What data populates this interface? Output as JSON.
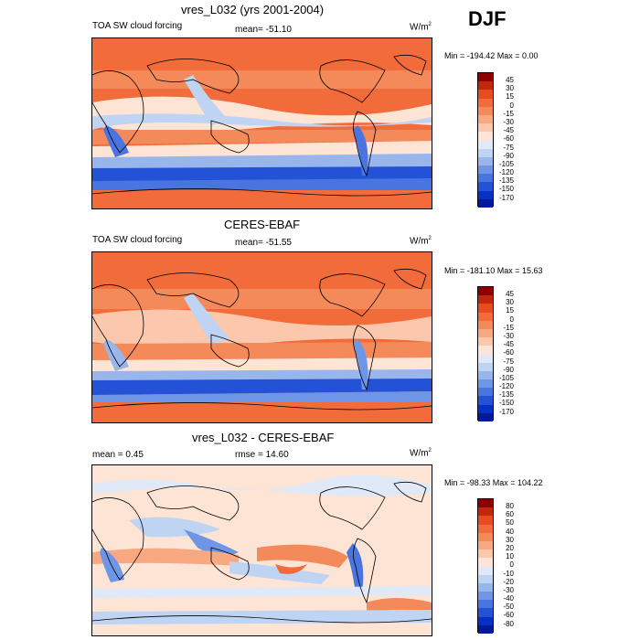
{
  "season": "DJF",
  "panels": [
    {
      "title": "vres_L032 (yrs 2001-2004)",
      "left_label": "TOA SW cloud forcing",
      "center_label": "mean= -51.10",
      "units": "W/m",
      "units_sup": "2",
      "minmax": "Min = -194.42 Max =   0.00",
      "colorbar_labels": [
        "45",
        "30",
        "15",
        "0",
        "-15",
        "-30",
        "-45",
        "-60",
        "-75",
        "-90",
        "-105",
        "-120",
        "-135",
        "-150",
        "-170"
      ]
    },
    {
      "title": "CERES-EBAF",
      "left_label": "TOA SW cloud forcing",
      "center_label": "mean= -51.55",
      "units": "W/m",
      "units_sup": "2",
      "minmax": "Min = -181.10 Max =  15.63",
      "colorbar_labels": [
        "45",
        "30",
        "15",
        "0",
        "-15",
        "-30",
        "-45",
        "-60",
        "-75",
        "-90",
        "-105",
        "-120",
        "-135",
        "-150",
        "-170"
      ]
    },
    {
      "title": "vres_L032 - CERES-EBAF",
      "left_label": "mean =   0.45",
      "center_label": "rmse =  14.60",
      "units": "W/m",
      "units_sup": "2",
      "minmax": "Min = -98.33 Max = 104.22",
      "colorbar_labels": [
        "80",
        "60",
        "50",
        "40",
        "30",
        "20",
        "10",
        "0",
        "-10",
        "-20",
        "-30",
        "-40",
        "-50",
        "-60",
        "-80"
      ]
    }
  ],
  "colors": {
    "abs_scale": [
      "#8b0000",
      "#c0280e",
      "#e84c1e",
      "#f26b3a",
      "#f4895a",
      "#f8a982",
      "#fbc8ad",
      "#fde4d5",
      "#dfe9f7",
      "#bfd3f2",
      "#98b6ec",
      "#6f96e6",
      "#4a74e0",
      "#2452d6",
      "#0830c4",
      "#001a9a"
    ],
    "diff_scale": [
      "#8b0000",
      "#c0280e",
      "#e84c1e",
      "#f26b3a",
      "#f4895a",
      "#f8a982",
      "#fbc8ad",
      "#fde4d5",
      "#dfe9f7",
      "#bfd3f2",
      "#98b6ec",
      "#6f96e6",
      "#4a74e0",
      "#2452d6",
      "#0830c4",
      "#001a9a"
    ]
  }
}
